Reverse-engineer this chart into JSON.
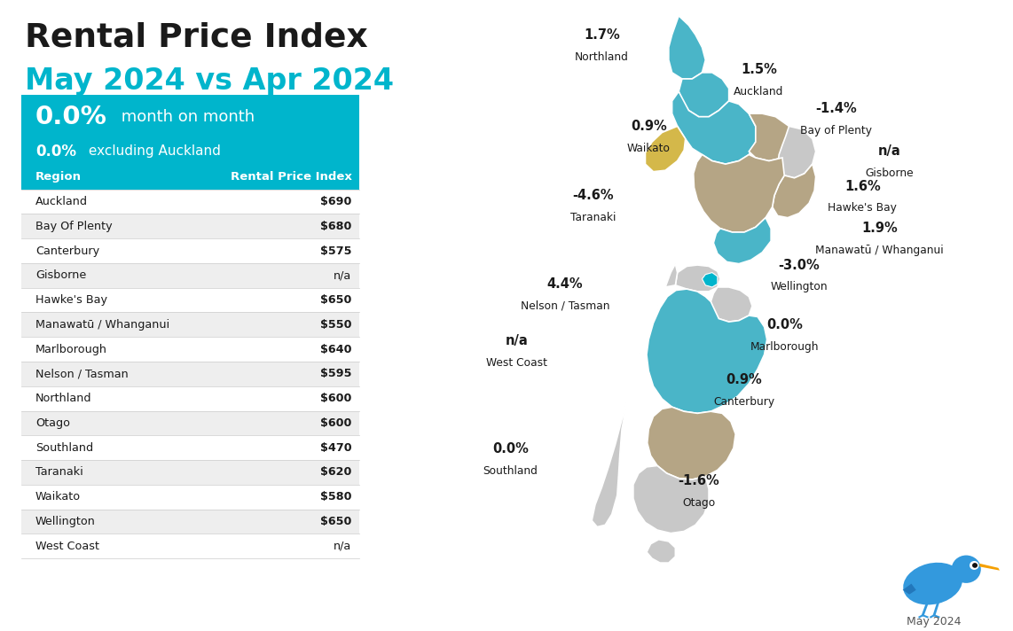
{
  "title_line1": "Rental Price Index",
  "title_line2": "May 2024 vs Apr 2024",
  "title_color1": "#1a1a1a",
  "title_color2": "#00b5cc",
  "stat_box_color": "#00b5cc",
  "stat_main": "0.0%",
  "stat_main_suffix": " month on month",
  "stat_sub": "0.0%",
  "stat_sub_suffix": " excluding Auckland",
  "table_header_color": "#00b5cc",
  "table_rows": [
    [
      "Auckland",
      "$690"
    ],
    [
      "Bay Of Plenty",
      "$680"
    ],
    [
      "Canterbury",
      "$575"
    ],
    [
      "Gisborne",
      "n/a"
    ],
    [
      "Hawke's Bay",
      "$650"
    ],
    [
      "Manawatū / Whanganui",
      "$550"
    ],
    [
      "Marlborough",
      "$640"
    ],
    [
      "Nelson / Tasman",
      "$595"
    ],
    [
      "Northland",
      "$600"
    ],
    [
      "Otago",
      "$600"
    ],
    [
      "Southland",
      "$470"
    ],
    [
      "Taranaki",
      "$620"
    ],
    [
      "Waikato",
      "$580"
    ],
    [
      "Wellington",
      "$650"
    ],
    [
      "West Coast",
      "n/a"
    ]
  ],
  "background_color": "#ffffff",
  "c_teal": "#4ab5c8",
  "c_khaki": "#b5a585",
  "c_gold": "#d4b84a",
  "c_lgray": "#c8c8c8",
  "c_blue": "#00b5cc",
  "c_mgray": "#a8a8a8"
}
